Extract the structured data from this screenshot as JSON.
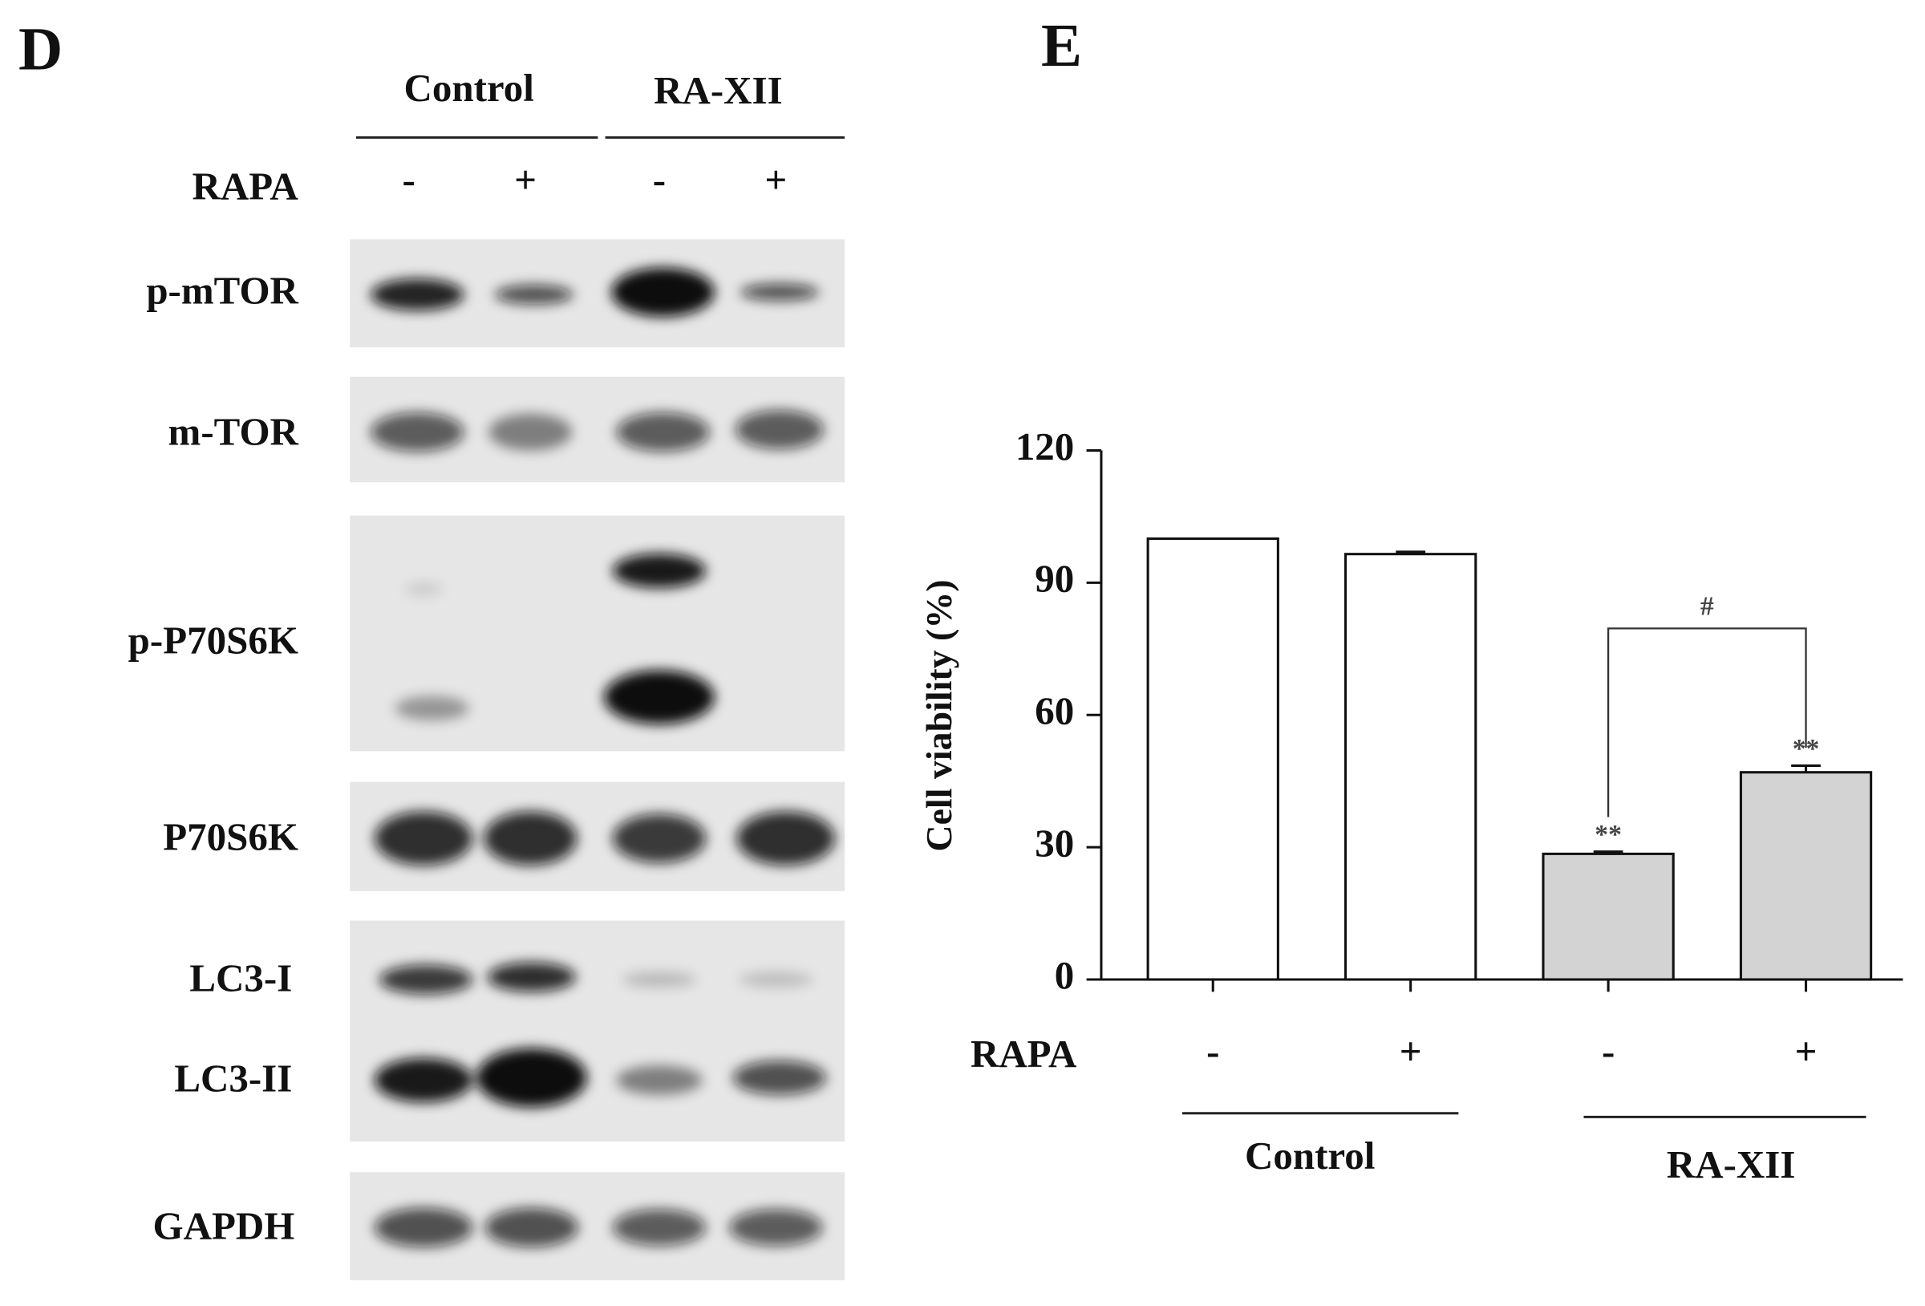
{
  "panel_d": {
    "label": "D",
    "groups": [
      "Control",
      "RA-XII"
    ],
    "treatment_label": "RAPA",
    "treatments": [
      "-",
      "+",
      "-",
      "+"
    ],
    "rows": [
      "p-mTOR",
      "m-TOR",
      "p-P70S6K",
      "P70S6K",
      "LC3-I",
      "LC3-II",
      "GAPDH"
    ]
  },
  "chart_data": {
    "type": "bar",
    "panel_label": "E",
    "y_label": "Cell viability (%)",
    "treatment_label": "RAPA",
    "categories": [
      "-",
      "+",
      "-",
      "+"
    ],
    "groups": [
      "Control",
      "RA-XII"
    ],
    "values": [
      100,
      96.5,
      28.5,
      47
    ],
    "errors": [
      0,
      0.5,
      0.5,
      1.5
    ],
    "colors": [
      "#ffffff",
      "#ffffff",
      "#d3d3d3",
      "#d3d3d3"
    ],
    "annotations": [
      null,
      null,
      "**",
      "**"
    ],
    "significance": "#",
    "ylim": [
      0,
      120
    ],
    "yticks": [
      0,
      30,
      60,
      90,
      120
    ]
  }
}
